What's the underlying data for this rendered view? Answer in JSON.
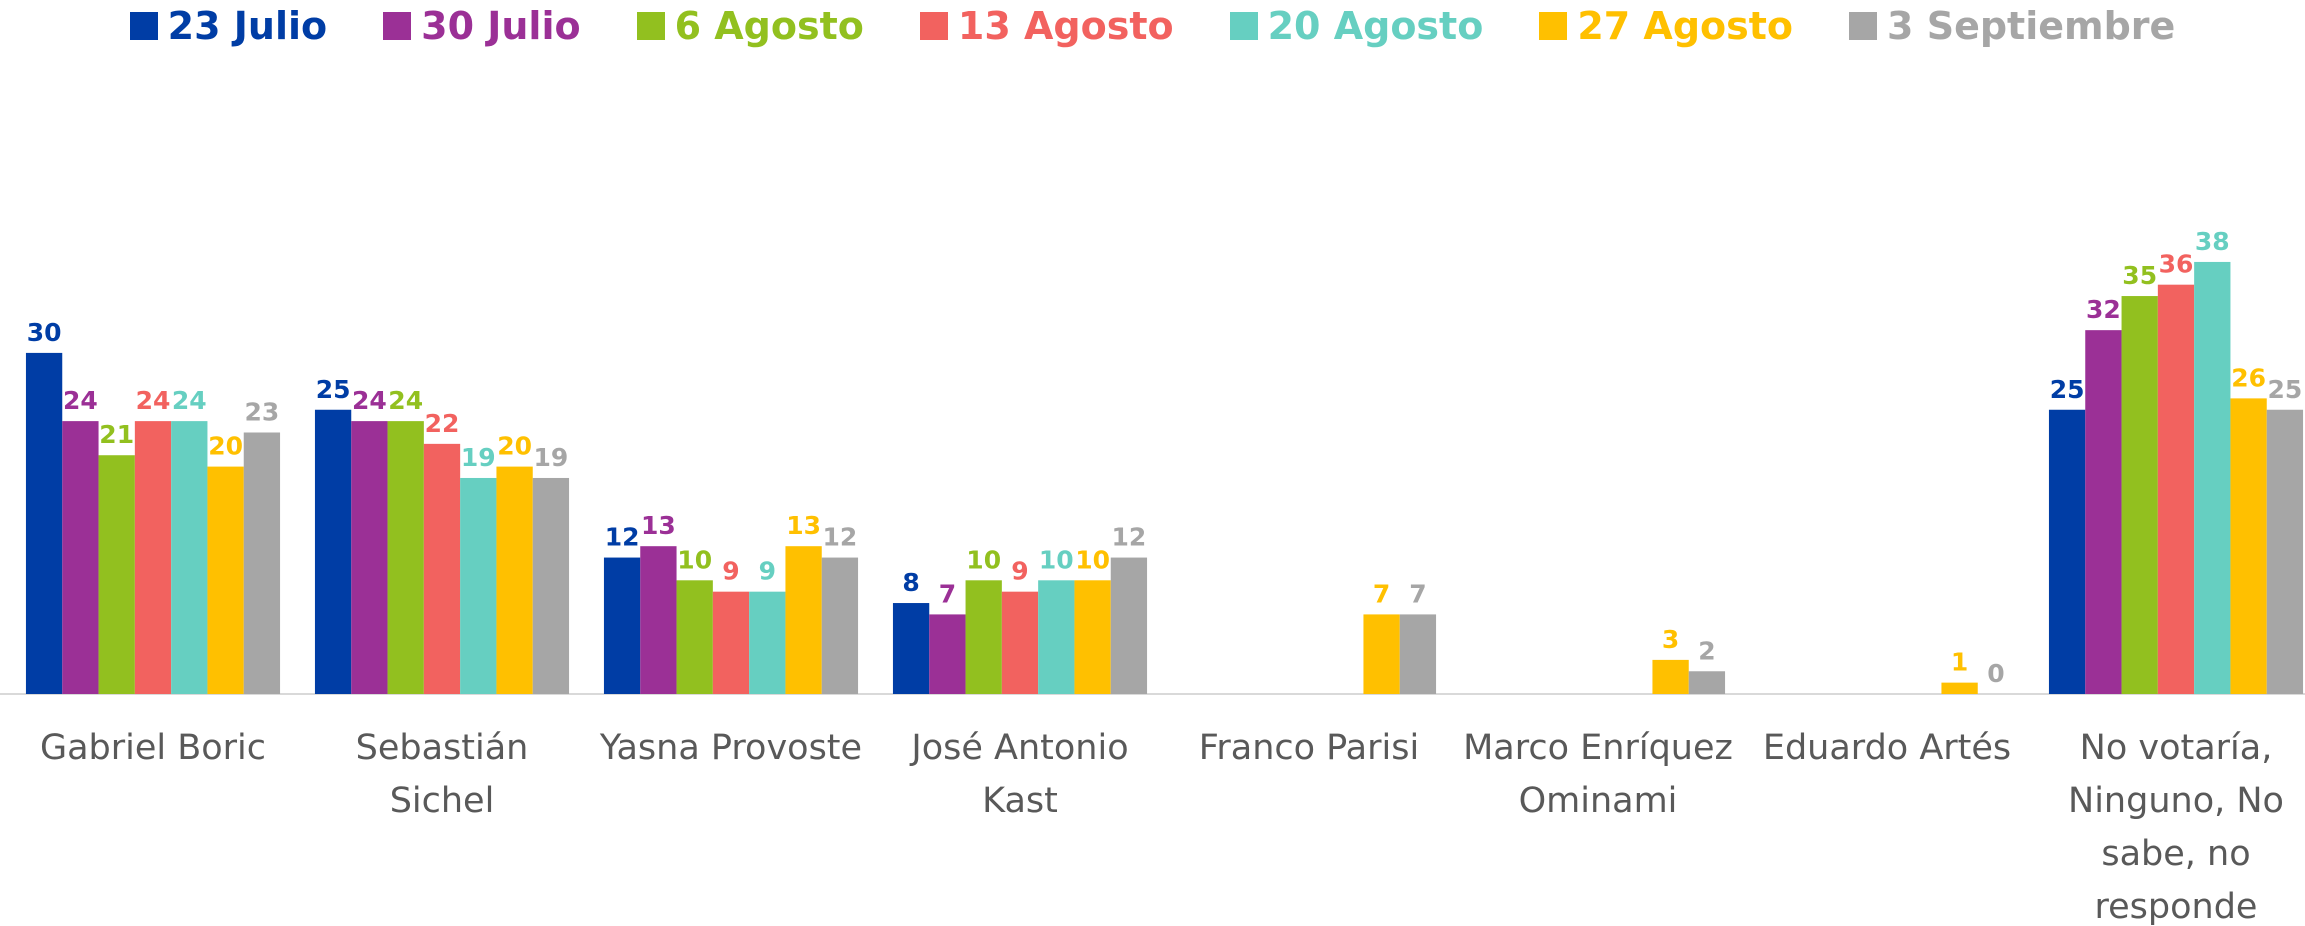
{
  "chart_data": {
    "type": "bar",
    "categories": [
      "Gabriel Boric",
      "Sebastián Sichel",
      "Yasna Provoste",
      "José Antonio Kast",
      "Franco Parisi",
      "Marco Enríquez Ominami",
      "Eduardo Artés",
      "No votaría, Ninguno, No sabe, no responde"
    ],
    "series": [
      {
        "name": "23 Julio",
        "color": "#003DA5",
        "values": [
          30,
          25,
          12,
          8,
          null,
          null,
          null,
          25
        ]
      },
      {
        "name": "30 Julio",
        "color": "#9B3096",
        "values": [
          24,
          24,
          13,
          7,
          null,
          null,
          null,
          32
        ]
      },
      {
        "name": "6 Agosto",
        "color": "#92C01F",
        "values": [
          21,
          24,
          10,
          10,
          null,
          null,
          null,
          35
        ]
      },
      {
        "name": "13 Agosto",
        "color": "#F2625F",
        "values": [
          24,
          22,
          9,
          9,
          null,
          null,
          null,
          36
        ]
      },
      {
        "name": "20 Agosto",
        "color": "#66CFC1",
        "values": [
          24,
          19,
          9,
          10,
          null,
          null,
          null,
          38
        ]
      },
      {
        "name": "27 Agosto",
        "color": "#FFC000",
        "values": [
          20,
          20,
          13,
          10,
          7,
          3,
          1,
          26
        ]
      },
      {
        "name": "3 Septiembre",
        "color": "#A6A6A6",
        "values": [
          23,
          19,
          12,
          12,
          7,
          2,
          0,
          25
        ]
      }
    ],
    "legend": "top"
  }
}
